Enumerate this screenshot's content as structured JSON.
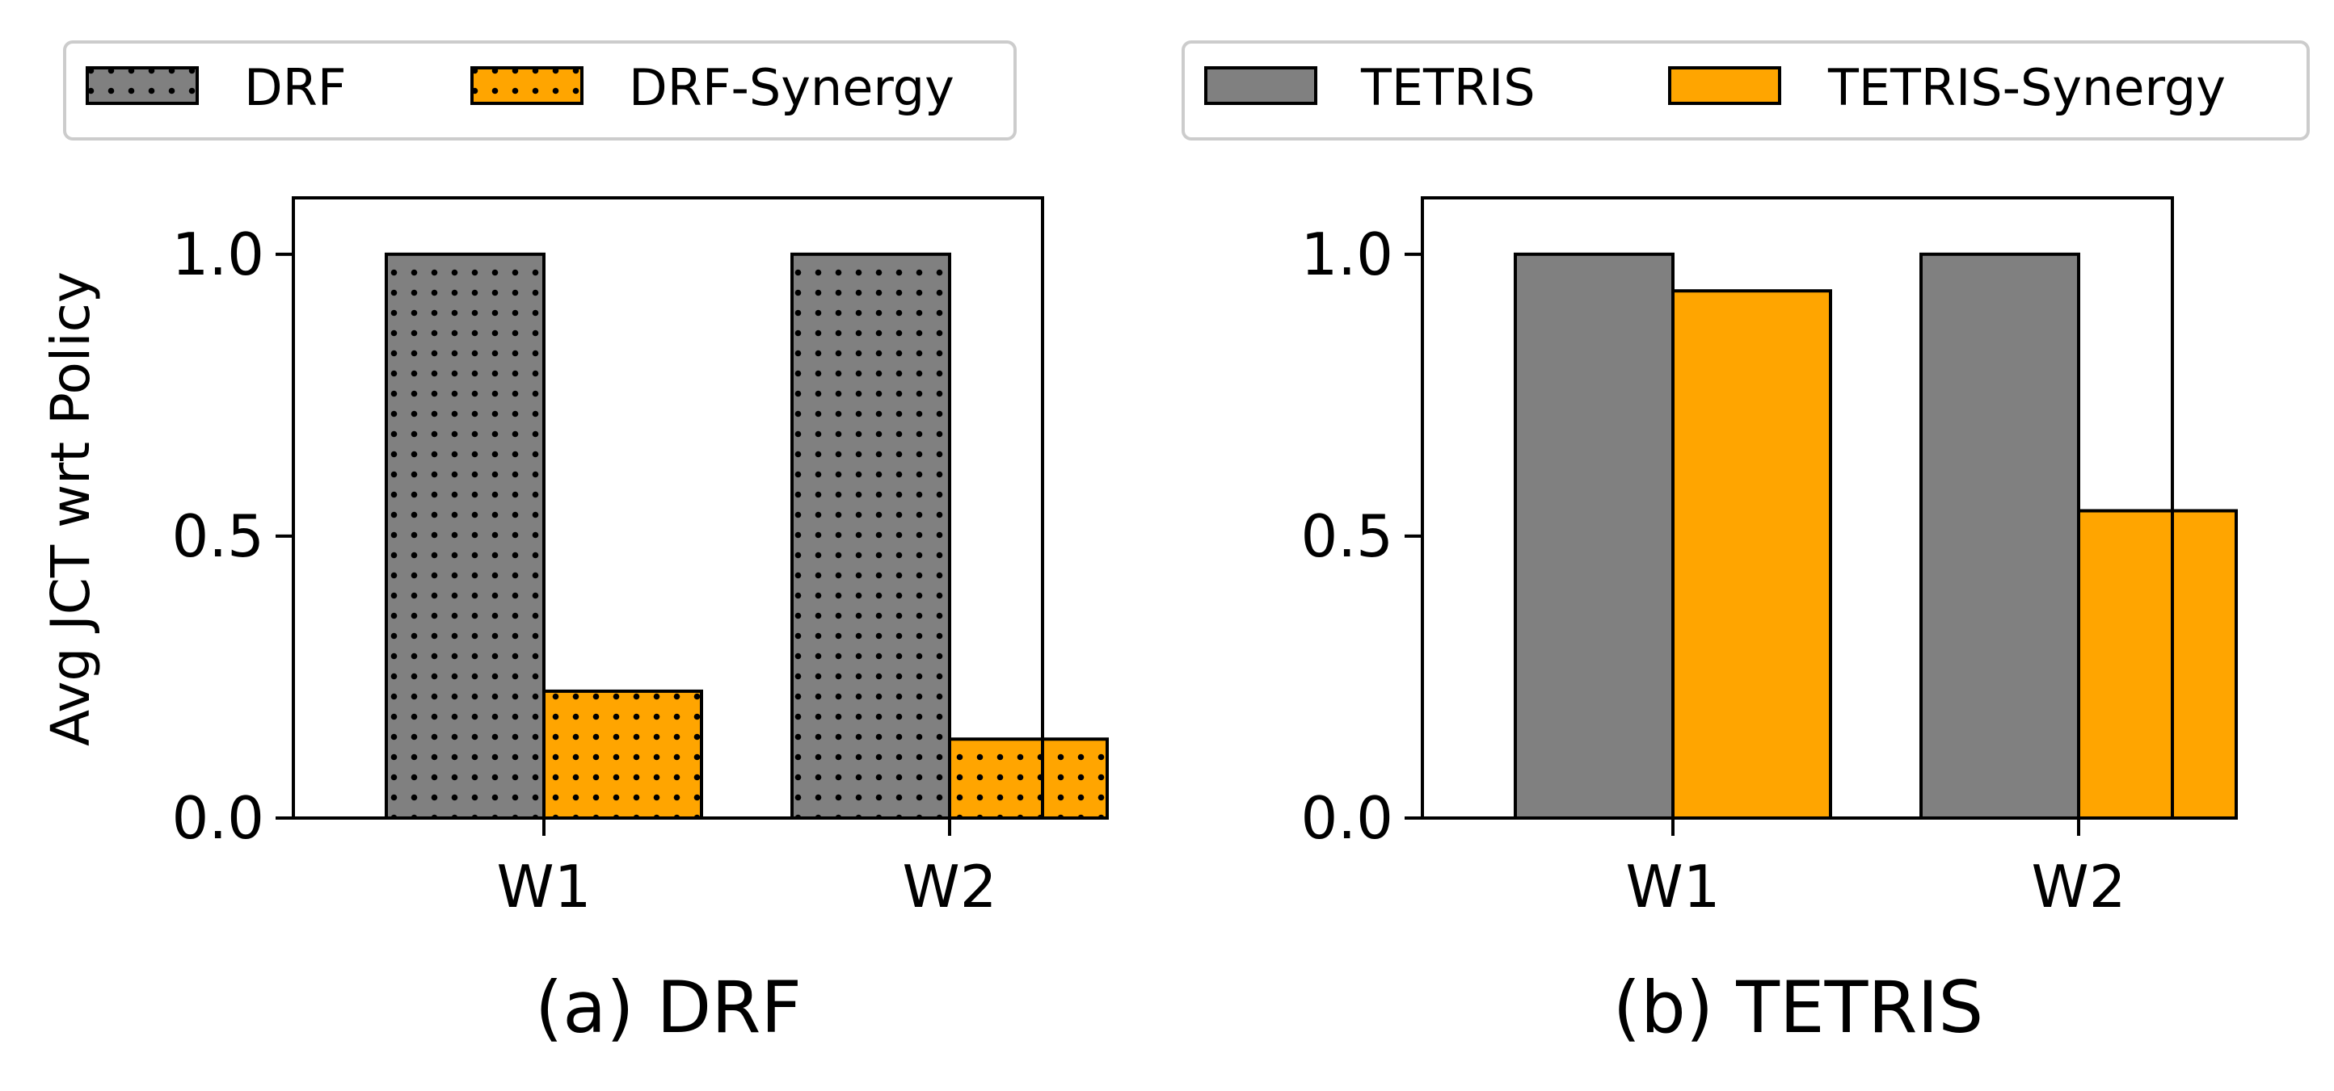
{
  "chart_data": [
    {
      "type": "bar",
      "panel_caption": "(a) DRF",
      "ylabel": "Avg JCT wrt Policy",
      "xlabel": "",
      "categories": [
        "W1",
        "W2"
      ],
      "ylim": [
        0,
        1.1
      ],
      "yticks": [
        "0.0",
        "0.5",
        "1.0"
      ],
      "grid": false,
      "legend_position": "top",
      "series": [
        {
          "name": "DRF",
          "values": [
            1.0,
            1.0
          ],
          "color": "#808080",
          "hatch": "dots"
        },
        {
          "name": "DRF-Synergy",
          "values": [
            0.225,
            0.14
          ],
          "color": "#FFA500",
          "hatch": "dots"
        }
      ]
    },
    {
      "type": "bar",
      "panel_caption": "(b) TETRIS",
      "ylabel": "",
      "xlabel": "",
      "categories": [
        "W1",
        "W2"
      ],
      "ylim": [
        0,
        1.1
      ],
      "yticks": [
        "0.0",
        "0.5",
        "1.0"
      ],
      "grid": false,
      "legend_position": "top",
      "series": [
        {
          "name": "TETRIS",
          "values": [
            1.0,
            1.0
          ],
          "color": "#808080",
          "hatch": "none"
        },
        {
          "name": "TETRIS-Synergy",
          "values": [
            0.935,
            0.545
          ],
          "color": "#FFA500",
          "hatch": "none"
        }
      ]
    }
  ]
}
